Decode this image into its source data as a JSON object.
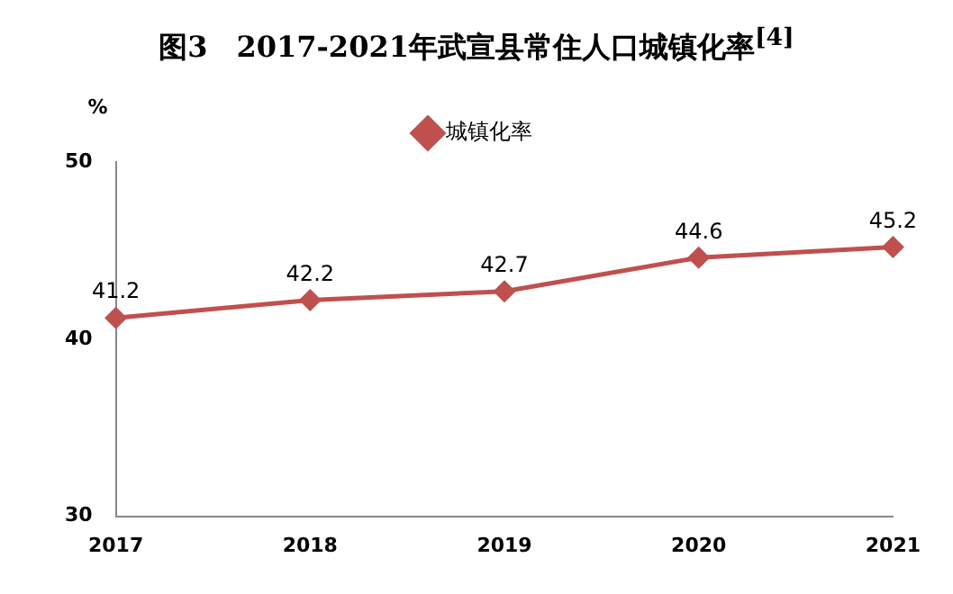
{
  "chart_data": {
    "type": "line",
    "title": "图3　2017-2021年武宣县常住人口城镇化率$^{[4]}$",
    "ylabel": "%",
    "categories": [
      "2017",
      "2018",
      "2019",
      "2020",
      "2021"
    ],
    "series": [
      {
        "name": "城镇化率",
        "color": "#c0504d",
        "values": [
          41.2,
          42.2,
          42.7,
          44.6,
          45.2
        ]
      }
    ],
    "ylim": [
      30,
      50
    ],
    "yticks": [
      30,
      40,
      50
    ],
    "grid": false,
    "legend": "top",
    "marker": "diamond",
    "line_style": "solid",
    "data_labels": true
  }
}
